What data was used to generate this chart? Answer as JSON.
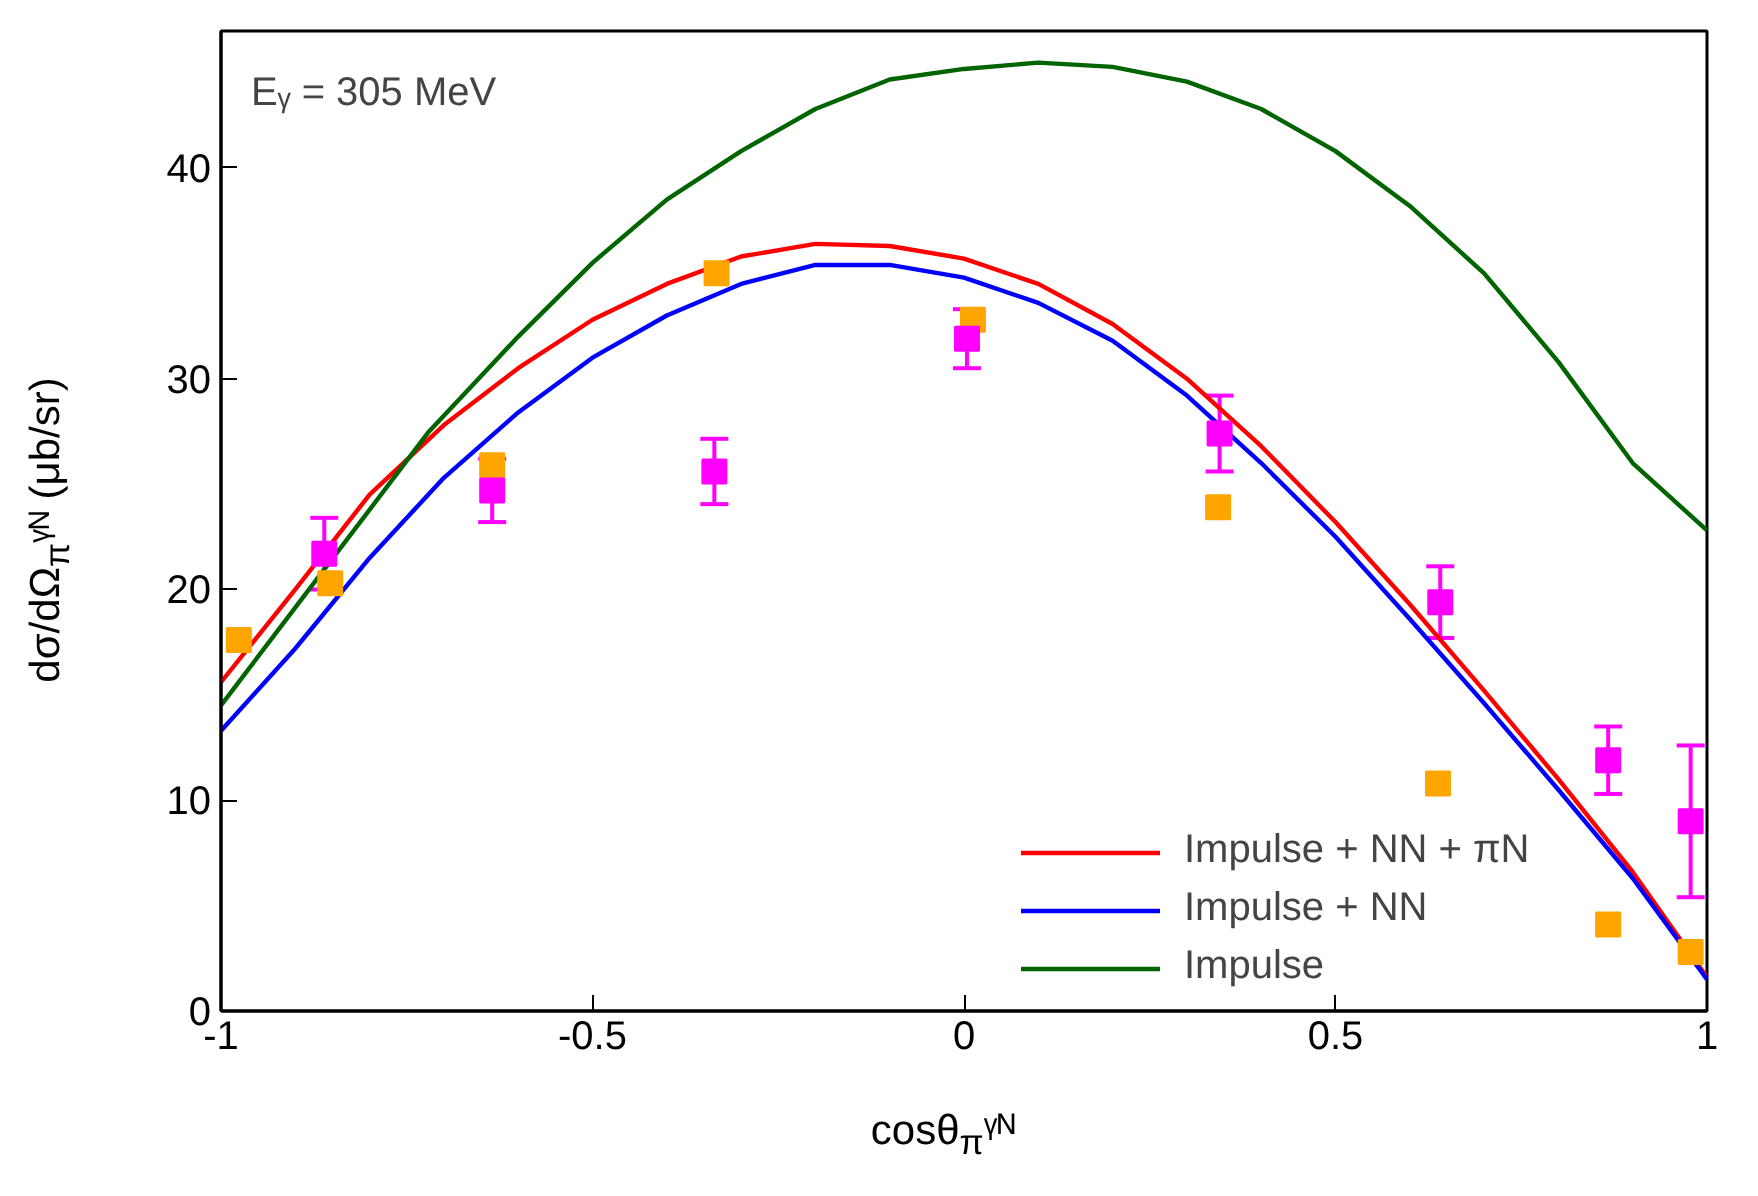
{
  "chart_data": {
    "type": "line",
    "xlabel": "cosθ$_{π}$ᵞᴺ",
    "ylabel": "dσ/dΩ$_{π}$ᵞᴺ (μb/sr)",
    "annotations": [
      "Eᵧ = 305 MeV"
    ],
    "xlim": [
      -1,
      1
    ],
    "ylim": [
      0,
      46.5
    ],
    "xticks": [
      -1,
      -0.5,
      0,
      0.5,
      1
    ],
    "yticks": [
      0,
      10,
      20,
      30,
      40
    ],
    "grid": false,
    "legend": "bottom right",
    "line_style": "solid",
    "series": [
      {
        "name": "Impulse + NN + πN",
        "color": "#ff0000",
        "x": [
          -1,
          -0.9,
          -0.8,
          -0.7,
          -0.6,
          -0.5,
          -0.4,
          -0.3,
          -0.2,
          -0.1,
          0,
          0.1,
          0.2,
          0.3,
          0.4,
          0.5,
          0.6,
          0.7,
          0.8,
          0.9,
          1
        ],
        "values": [
          15.6,
          20,
          24.5,
          27.8,
          30.5,
          32.8,
          34.5,
          35.8,
          36.4,
          36.3,
          35.7,
          34.5,
          32.6,
          30.0,
          26.8,
          23.2,
          19.3,
          15.2,
          11,
          6.6,
          1.6
        ]
      },
      {
        "name": "Impulse + NN",
        "color": "#0000ff",
        "x": [
          -1,
          -0.9,
          -0.8,
          -0.7,
          -0.6,
          -0.5,
          -0.4,
          -0.3,
          -0.2,
          -0.1,
          0,
          0.1,
          0.2,
          0.3,
          0.4,
          0.5,
          0.6,
          0.7,
          0.8,
          0.9,
          1
        ],
        "values": [
          13.3,
          17.2,
          21.5,
          25.3,
          28.4,
          31,
          33,
          34.5,
          35.4,
          35.4,
          34.8,
          33.6,
          31.8,
          29.2,
          26.0,
          22.5,
          18.6,
          14.6,
          10.5,
          6.3,
          1.5
        ]
      },
      {
        "name": "Impulse",
        "color": "#006400",
        "x": [
          -1,
          -0.86,
          -0.72,
          -0.6,
          -0.5,
          -0.4,
          -0.3,
          -0.2,
          -0.1,
          0,
          0.1,
          0.2,
          0.3,
          0.4,
          0.5,
          0.6,
          0.7,
          0.8,
          0.9,
          1
        ],
        "values": [
          14.5,
          21,
          27.5,
          32,
          35.5,
          38.5,
          40.8,
          42.8,
          44.2,
          44.7,
          45,
          44.8,
          44.1,
          42.8,
          40.8,
          38.2,
          35,
          30.8,
          26,
          22.8
        ]
      },
      {
        "color": "#ffa500",
        "type": "scatter",
        "marker": "square",
        "x": [
          -0.976,
          -0.853,
          -0.635,
          -0.333,
          0.012,
          0.342,
          0.638,
          0.867,
          0.978
        ],
        "values": [
          17.6,
          20.3,
          25.9,
          35.0,
          32.8,
          23.9,
          10.8,
          4.1,
          2.8
        ]
      },
      {
        "color": "#ff00ff",
        "type": "scatter",
        "marker": "square",
        "x": [
          -0.861,
          -0.635,
          -0.336,
          0.004,
          0.344,
          0.641,
          0.867,
          0.978
        ],
        "values": [
          21.7,
          24.7,
          25.6,
          31.9,
          27.4,
          19.4,
          11.9,
          9.0
        ],
        "errors": [
          1.7,
          1.5,
          1.55,
          1.4,
          1.8,
          1.7,
          1.6,
          3.6
        ]
      }
    ]
  }
}
